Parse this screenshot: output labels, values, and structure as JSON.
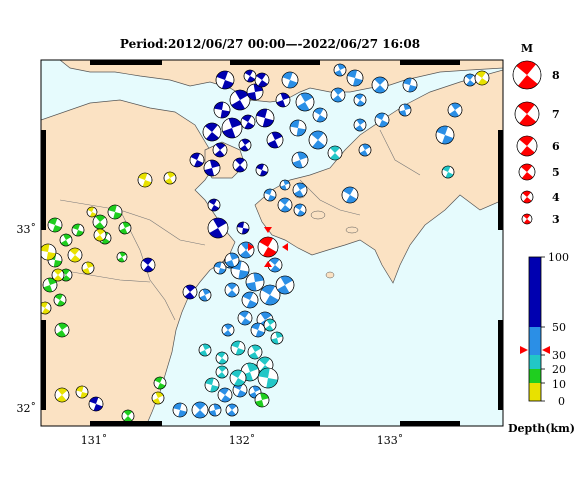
{
  "title": "Period:2012/06/27 00:00—-2022/06/27 16:08",
  "colors": {
    "land": "#fbe2c3",
    "sea": "#e6fbfd",
    "deep": "#0000b0",
    "mid": "#2b8fe6",
    "shallow_cyan": "#22c7c7",
    "shallow_green": "#1fce1f",
    "surface": "#e8e100",
    "highlight": "#ff0000"
  },
  "lon_labels": [
    "131˚",
    "132˚",
    "133˚"
  ],
  "lat_labels": [
    "33˚",
    "32˚"
  ],
  "magnitude_legend": {
    "title": "M",
    "labels": [
      "8",
      "7",
      "6",
      "5",
      "4",
      "3"
    ]
  },
  "depth_legend": {
    "ticks": [
      "100",
      "50",
      "30",
      "20",
      "10",
      "0"
    ],
    "unit": "Depth(km)",
    "marker_depth_km": 35
  },
  "highlighted_event": {
    "depth_class": "mid",
    "magnitude_class": "5"
  }
}
